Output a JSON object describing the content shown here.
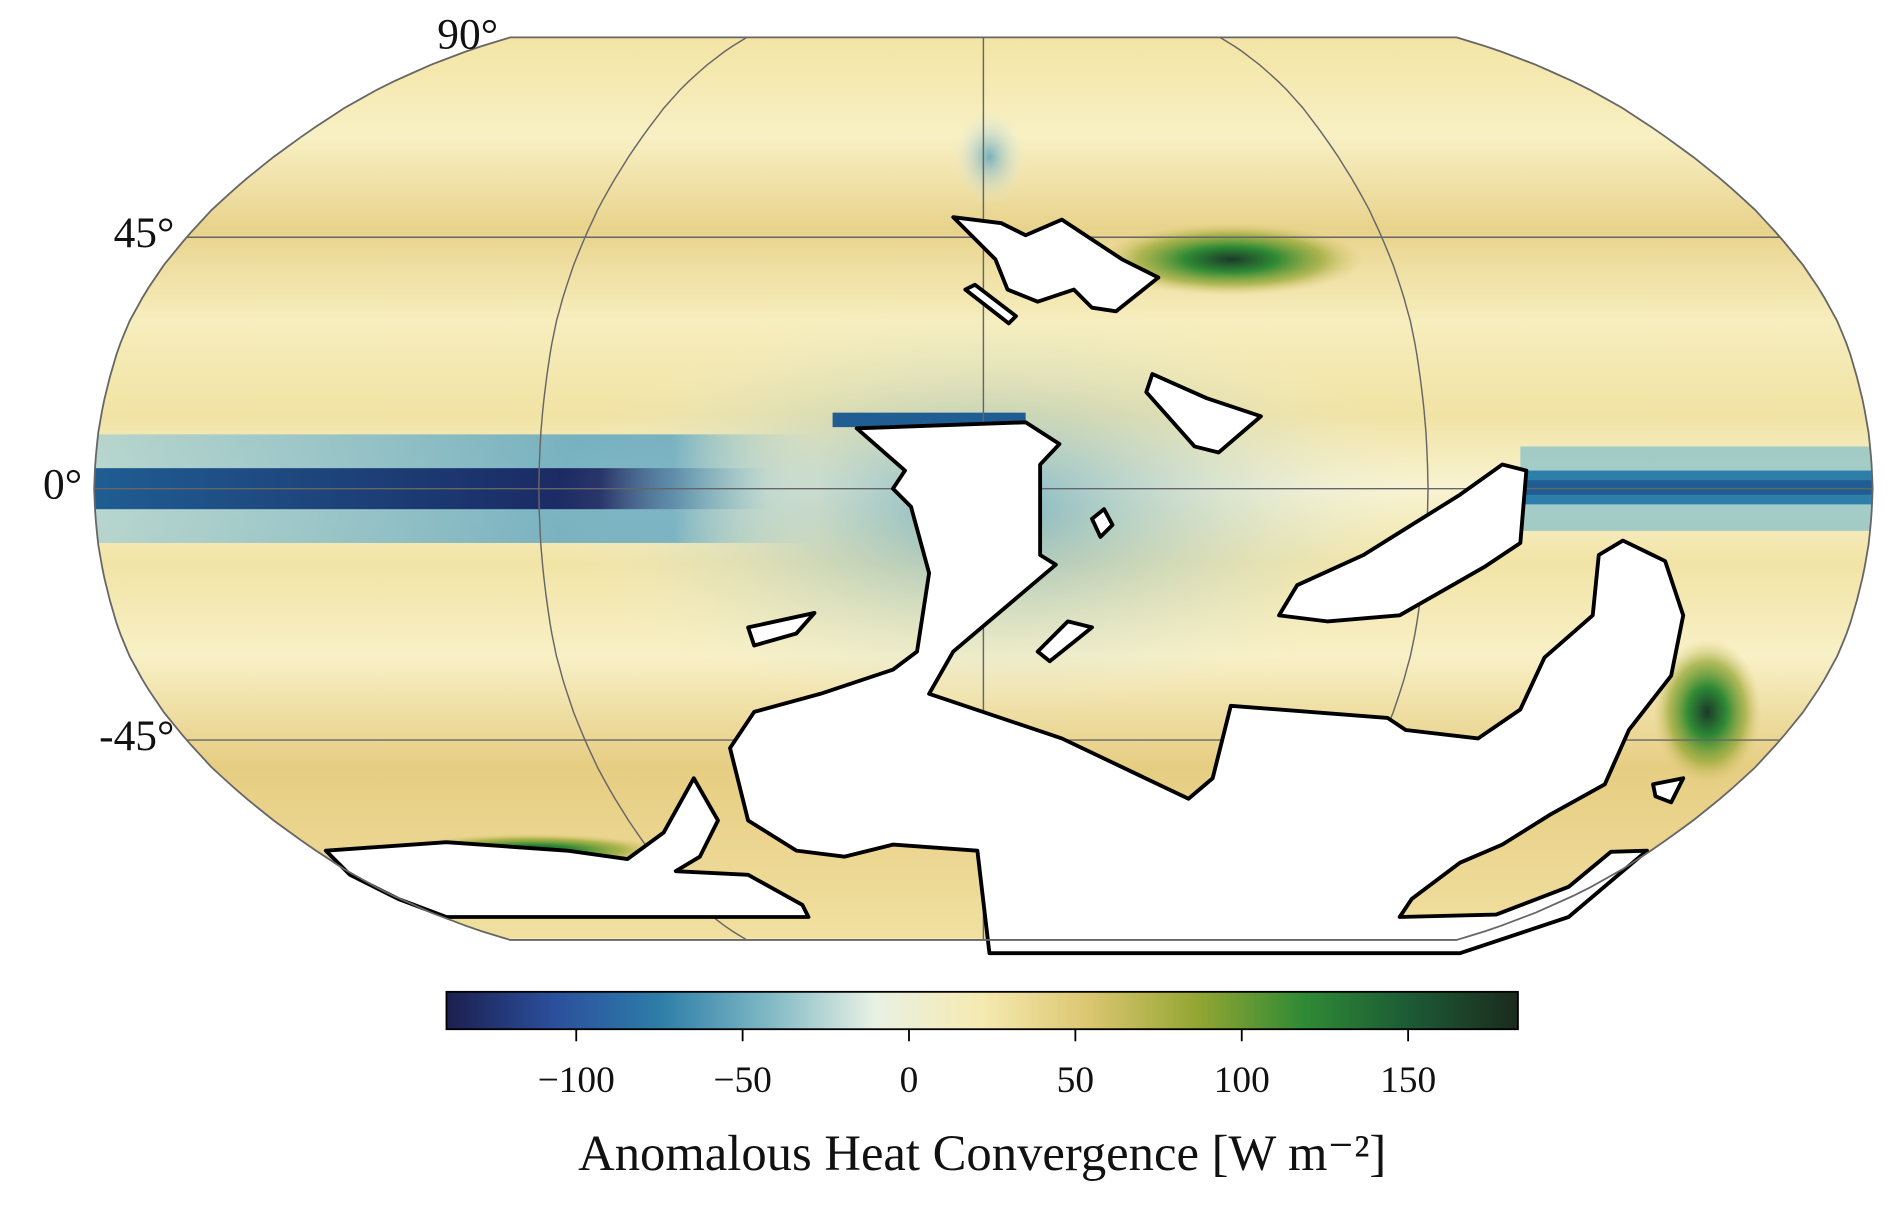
{
  "chart_data": {
    "type": "map",
    "ylim": [
      -90,
      90
    ],
    "yticks": [
      {
        "value": 90,
        "label": "90°"
      },
      {
        "value": 45,
        "label": "45°"
      },
      {
        "value": 0,
        "label": "0°"
      },
      {
        "value": -45,
        "label": "-45°"
      }
    ],
    "grid": true,
    "colorbar": {
      "label": "Anomalous Heat Convergence [W m⁻²]",
      "clim": [
        -139,
        183
      ],
      "ticks": [
        {
          "value": -100,
          "label": "−100"
        },
        {
          "value": -50,
          "label": "−50"
        },
        0,
        50,
        100,
        150
      ],
      "colormap": [
        "#1b1f4f",
        "#2b4f9c",
        "#2d7ea8",
        "#7fb8c4",
        "#e9f1e4",
        "#f5eab0",
        "#dbc670",
        "#94a632",
        "#2f8a35",
        "#1c5a35",
        "#1b2a1d"
      ]
    }
  }
}
